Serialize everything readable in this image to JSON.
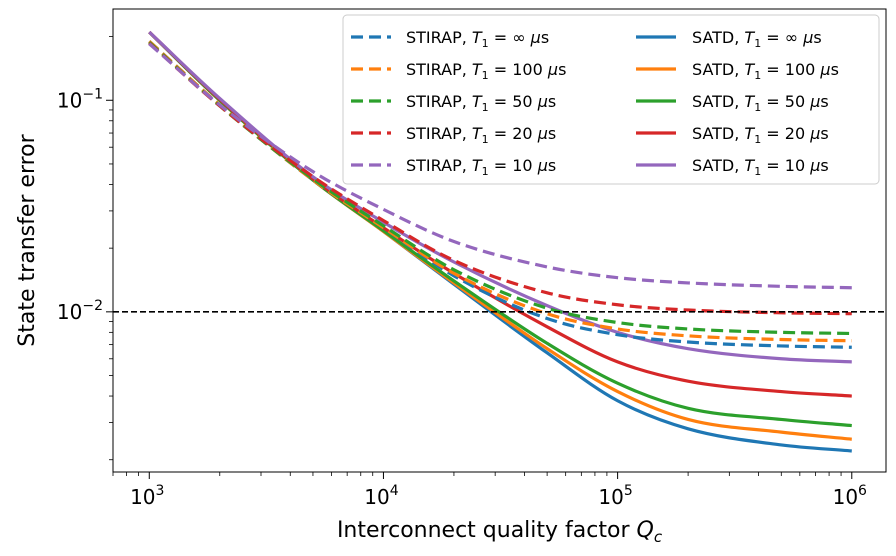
{
  "chart_data": {
    "type": "line",
    "title": "",
    "xlabel": "Interconnect quality factor Q_c",
    "xlabel_main": "Interconnect quality factor ",
    "xlabel_sym": "Q",
    "xlabel_sub": "c",
    "ylabel": "State transfer error",
    "xscale": "log",
    "yscale": "log",
    "xlim": [
      700,
      1400000
    ],
    "ylim": [
      0.00175,
      0.27
    ],
    "xticks": [
      {
        "value": 1000,
        "base": "10",
        "exp": "3"
      },
      {
        "value": 10000,
        "base": "10",
        "exp": "4"
      },
      {
        "value": 100000,
        "base": "10",
        "exp": "5"
      },
      {
        "value": 1000000,
        "base": "10",
        "exp": "6"
      }
    ],
    "yticks": [
      {
        "value": 0.01,
        "base": "10",
        "exp": "−2"
      },
      {
        "value": 0.1,
        "base": "10",
        "exp": "−1"
      }
    ],
    "hline": {
      "value": 0.01,
      "style": "dashed",
      "color": "#000000"
    },
    "legend_position": "top-right",
    "series": [
      {
        "name": "STIRAP, T_1 = ∞ μs",
        "prefix": "STIRAP, ",
        "t1": "∞",
        "color": "#1f77b4",
        "style": "dashed",
        "x": [
          1000,
          2000,
          5000,
          10000,
          20000,
          50000,
          100000,
          200000,
          500000,
          1000000
        ],
        "y": [
          0.19,
          0.095,
          0.042,
          0.025,
          0.0148,
          0.0093,
          0.0078,
          0.0072,
          0.0069,
          0.0068
        ]
      },
      {
        "name": "STIRAP, T_1 = 100 μs",
        "prefix": "STIRAP, ",
        "t1": "100",
        "color": "#ff7f0e",
        "style": "dashed",
        "x": [
          1000,
          2000,
          5000,
          10000,
          20000,
          50000,
          100000,
          200000,
          500000,
          1000000
        ],
        "y": [
          0.19,
          0.095,
          0.042,
          0.025,
          0.0152,
          0.0098,
          0.0083,
          0.0077,
          0.0074,
          0.0073
        ]
      },
      {
        "name": "STIRAP, T_1 = 50 μs",
        "prefix": "STIRAP, ",
        "t1": "50",
        "color": "#2ca02c",
        "style": "dashed",
        "x": [
          1000,
          2000,
          5000,
          10000,
          20000,
          50000,
          100000,
          200000,
          500000,
          1000000
        ],
        "y": [
          0.188,
          0.094,
          0.0425,
          0.0255,
          0.0158,
          0.0104,
          0.0089,
          0.0083,
          0.008,
          0.0079
        ]
      },
      {
        "name": "STIRAP, T_1 = 20 μs",
        "prefix": "STIRAP, ",
        "t1": "20",
        "color": "#d62728",
        "style": "dashed",
        "x": [
          1000,
          2000,
          5000,
          10000,
          20000,
          50000,
          100000,
          200000,
          500000,
          1000000
        ],
        "y": [
          0.186,
          0.094,
          0.0435,
          0.027,
          0.0175,
          0.0123,
          0.0108,
          0.0102,
          0.0099,
          0.0098
        ]
      },
      {
        "name": "STIRAP, T_1 = 10 μs",
        "prefix": "STIRAP, ",
        "t1": "10",
        "color": "#9467bd",
        "style": "dashed",
        "x": [
          1000,
          2000,
          5000,
          10000,
          20000,
          50000,
          100000,
          200000,
          500000,
          1000000
        ],
        "y": [
          0.185,
          0.095,
          0.046,
          0.0305,
          0.0215,
          0.0163,
          0.0145,
          0.0137,
          0.0132,
          0.013
        ]
      },
      {
        "name": "SATD, T_1 = ∞ μs",
        "prefix": "SATD, ",
        "t1": "∞",
        "color": "#1f77b4",
        "style": "solid",
        "x": [
          1000,
          2000,
          5000,
          10000,
          20000,
          50000,
          100000,
          200000,
          500000,
          1000000
        ],
        "y": [
          0.21,
          0.1,
          0.042,
          0.024,
          0.0135,
          0.0064,
          0.0038,
          0.0028,
          0.00235,
          0.0022
        ]
      },
      {
        "name": "SATD, T_1 = 100 μs",
        "prefix": "SATD, ",
        "t1": "100",
        "color": "#ff7f0e",
        "style": "solid",
        "x": [
          1000,
          2000,
          5000,
          10000,
          20000,
          50000,
          100000,
          200000,
          500000,
          1000000
        ],
        "y": [
          0.21,
          0.1,
          0.042,
          0.024,
          0.0137,
          0.0067,
          0.0042,
          0.0031,
          0.0027,
          0.0025
        ]
      },
      {
        "name": "SATD, T_1 = 50 μs",
        "prefix": "SATD, ",
        "t1": "50",
        "color": "#2ca02c",
        "style": "solid",
        "x": [
          1000,
          2000,
          5000,
          10000,
          20000,
          50000,
          100000,
          200000,
          500000,
          1000000
        ],
        "y": [
          0.21,
          0.1,
          0.042,
          0.0242,
          0.014,
          0.0071,
          0.0046,
          0.0035,
          0.0031,
          0.0029
        ]
      },
      {
        "name": "SATD, T_1 = 20 μs",
        "prefix": "SATD, ",
        "t1": "20",
        "color": "#d62728",
        "style": "solid",
        "x": [
          1000,
          2000,
          5000,
          10000,
          20000,
          50000,
          100000,
          200000,
          500000,
          1000000
        ],
        "y": [
          0.21,
          0.101,
          0.0425,
          0.025,
          0.0152,
          0.0085,
          0.0058,
          0.0047,
          0.0042,
          0.004
        ]
      },
      {
        "name": "SATD, T_1 = 10 μs",
        "prefix": "SATD, ",
        "t1": "10",
        "color": "#9467bd",
        "style": "solid",
        "x": [
          1000,
          2000,
          5000,
          10000,
          20000,
          50000,
          100000,
          200000,
          500000,
          1000000
        ],
        "y": [
          0.21,
          0.102,
          0.0435,
          0.0265,
          0.0172,
          0.0107,
          0.008,
          0.0067,
          0.006,
          0.0058
        ]
      }
    ]
  }
}
